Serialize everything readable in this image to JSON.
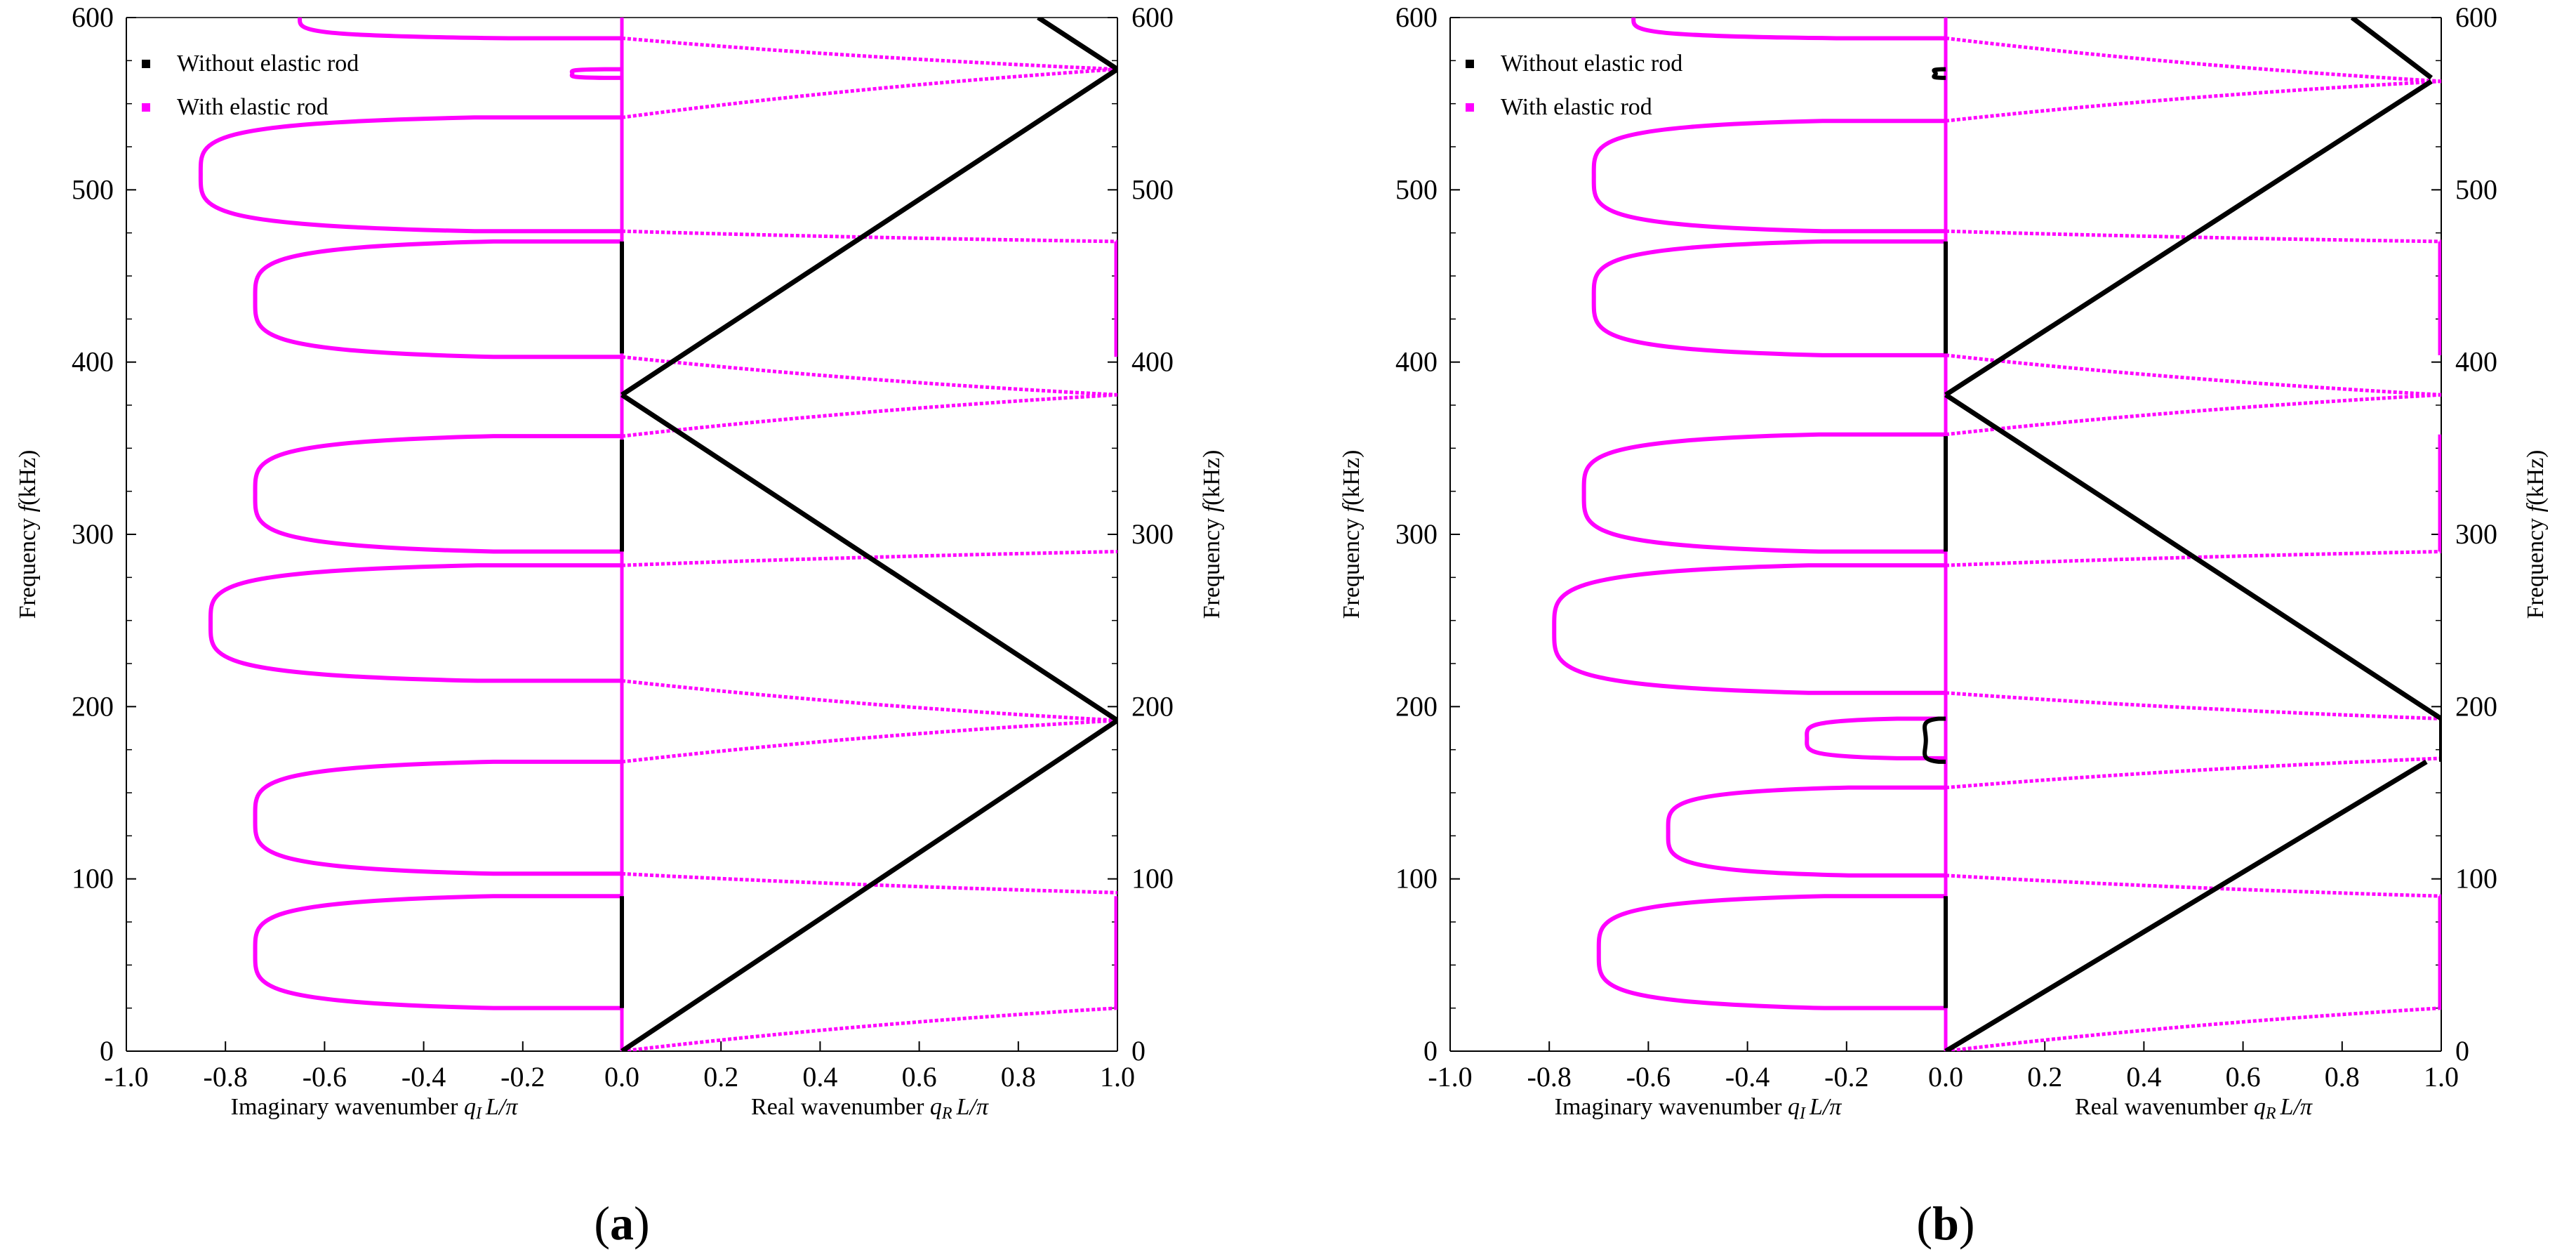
{
  "chart_data": [
    {
      "type": "scatter",
      "panel_label": "(a)",
      "panel_letter": "a",
      "title": "",
      "xlabel_left": "Imaginary wavenumber",
      "xlabel_left_symbol": "q",
      "xlabel_left_sub": "I",
      "xlabel_right": "Real wavenumber",
      "xlabel_right_symbol": "q",
      "xlabel_right_sub": "R",
      "xlabel_suffix": "L/π",
      "ylabel": "Frequency",
      "ylabel_symbol": "f",
      "ylabel_unit": "(kHz)",
      "xlim": [
        -1.0,
        1.0
      ],
      "ylim": [
        0,
        600
      ],
      "xticks": [
        "-1.0",
        "-0.8",
        "-0.6",
        "-0.4",
        "-0.2",
        "0.0",
        "0.2",
        "0.4",
        "0.6",
        "0.8",
        "1.0"
      ],
      "yticks": [
        "0",
        "100",
        "200",
        "300",
        "400",
        "500",
        "600"
      ],
      "legend": [
        {
          "label": "Without elastic rod",
          "color": "#000000"
        },
        {
          "label": "With elastic rod",
          "color": "#ff00ff"
        }
      ],
      "series": [
        {
          "name": "Without elastic rod",
          "color": "#000000",
          "segments": [
            [
              [
                0.0,
                0
              ],
              [
                1.0,
                192
              ]
            ],
            [
              [
                1.0,
                192
              ],
              [
                0.0,
                381
              ]
            ],
            [
              [
                0.0,
                381
              ],
              [
                1.0,
                570
              ]
            ],
            [
              [
                1.0,
                570
              ],
              [
                0.84,
                600
              ]
            ]
          ],
          "vertical_segments": [
            {
              "x": 0.0,
              "y": [
                25,
                90
              ]
            },
            {
              "x": 0.0,
              "y": [
                290,
                355
              ]
            },
            {
              "x": 0.0,
              "y": [
                405,
                470
              ]
            }
          ]
        },
        {
          "name": "With elastic rod",
          "color": "#ff00ff",
          "real_curves": [
            {
              "y0": 0,
              "y1": 25
            },
            {
              "y0": 103,
              "y1": 92
            },
            {
              "y0": 168,
              "y1": 192
            },
            {
              "y0": 215,
              "y1": 192
            },
            {
              "y0": 282,
              "y1": 290
            },
            {
              "y0": 357,
              "y1": 381
            },
            {
              "y0": 403,
              "y1": 381
            },
            {
              "y0": 476,
              "y1": 470
            },
            {
              "y0": 542,
              "y1": 570
            },
            {
              "y0": 588,
              "y1": 570
            }
          ],
          "imag_loops": [
            {
              "ylow": 25,
              "yhigh": 90,
              "xmin": -0.74
            },
            {
              "ylow": 103,
              "yhigh": 168,
              "xmin": -0.74
            },
            {
              "ylow": 215,
              "yhigh": 282,
              "xmin": -0.83
            },
            {
              "ylow": 290,
              "yhigh": 357,
              "xmin": -0.74
            },
            {
              "ylow": 403,
              "yhigh": 470,
              "xmin": -0.74
            },
            {
              "ylow": 476,
              "yhigh": 542,
              "xmin": -0.85
            },
            {
              "ylow": 565,
              "yhigh": 570,
              "xmin": -0.1
            }
          ],
          "imag_edge_arcs": [
            {
              "ylow": 588,
              "yhigh": 612,
              "xmin": -0.65
            }
          ],
          "stop_bands_at_x1": [
            {
              "y": [
                25,
                90
              ]
            },
            {
              "y": [
                403,
                470
              ]
            }
          ]
        }
      ]
    },
    {
      "type": "scatter",
      "panel_label": "(b)",
      "panel_letter": "b",
      "title": "",
      "xlabel_left": "Imaginary wavenumber",
      "xlabel_left_symbol": "q",
      "xlabel_left_sub": "I",
      "xlabel_right": "Real wavenumber",
      "xlabel_right_symbol": "q",
      "xlabel_right_sub": "R",
      "xlabel_suffix": "L/π",
      "ylabel": "Frequency",
      "ylabel_symbol": "f",
      "ylabel_unit": "(kHz)",
      "xlim": [
        -1.0,
        1.0
      ],
      "ylim": [
        0,
        600
      ],
      "xticks": [
        "-1.0",
        "-0.8",
        "-0.6",
        "-0.4",
        "-0.2",
        "0.0",
        "0.2",
        "0.4",
        "0.6",
        "0.8",
        "1.0"
      ],
      "yticks": [
        "0",
        "100",
        "200",
        "300",
        "400",
        "500",
        "600"
      ],
      "legend": [
        {
          "label": "Without elastic rod",
          "color": "#000000"
        },
        {
          "label": "With elastic rod",
          "color": "#ff00ff"
        }
      ],
      "series": [
        {
          "name": "Without elastic rod",
          "color": "#000000",
          "segments": [
            [
              [
                0.0,
                0
              ],
              [
                0.97,
                168
              ]
            ],
            [
              [
                1.0,
                193
              ],
              [
                0.0,
                381
              ]
            ],
            [
              [
                0.0,
                381
              ],
              [
                0.98,
                563
              ]
            ],
            [
              [
                0.98,
                565
              ],
              [
                0.82,
                600
              ]
            ]
          ],
          "vertical_segments": [
            {
              "x": 0.0,
              "y": [
                25,
                90
              ]
            },
            {
              "x": 0.0,
              "y": [
                290,
                357
              ]
            },
            {
              "x": 0.0,
              "y": [
                405,
                470
              ]
            },
            {
              "x": 1.0,
              "y": [
                168,
                193
              ]
            }
          ],
          "imag_loops": [
            {
              "ylow": 168,
              "yhigh": 193,
              "xmin": -0.04
            },
            {
              "ylow": 565,
              "yhigh": 570,
              "xmin": -0.02
            }
          ]
        },
        {
          "name": "With elastic rod",
          "color": "#ff00ff",
          "real_curves": [
            {
              "y0": 0,
              "y1": 25
            },
            {
              "y0": 102,
              "y1": 90
            },
            {
              "y0": 153,
              "y1": 170
            },
            {
              "y0": 208,
              "y1": 193
            },
            {
              "y0": 282,
              "y1": 290
            },
            {
              "y0": 358,
              "y1": 381
            },
            {
              "y0": 404,
              "y1": 381
            },
            {
              "y0": 476,
              "y1": 470
            },
            {
              "y0": 540,
              "y1": 563
            },
            {
              "y0": 588,
              "y1": 563
            }
          ],
          "imag_loops": [
            {
              "ylow": 25,
              "yhigh": 90,
              "xmin": -0.7
            },
            {
              "ylow": 102,
              "yhigh": 153,
              "xmin": -0.56
            },
            {
              "ylow": 170,
              "yhigh": 193,
              "xmin": -0.28
            },
            {
              "ylow": 208,
              "yhigh": 282,
              "xmin": -0.79
            },
            {
              "ylow": 290,
              "yhigh": 358,
              "xmin": -0.73
            },
            {
              "ylow": 404,
              "yhigh": 470,
              "xmin": -0.71
            },
            {
              "ylow": 476,
              "yhigh": 540,
              "xmin": -0.71
            }
          ],
          "imag_edge_arcs": [
            {
              "ylow": 588,
              "yhigh": 612,
              "xmin": -0.63
            }
          ],
          "stop_bands_at_x1": [
            {
              "y": [
                25,
                90
              ]
            },
            {
              "y": [
                290,
                358
              ]
            },
            {
              "y": [
                404,
                470
              ]
            }
          ]
        }
      ]
    }
  ]
}
